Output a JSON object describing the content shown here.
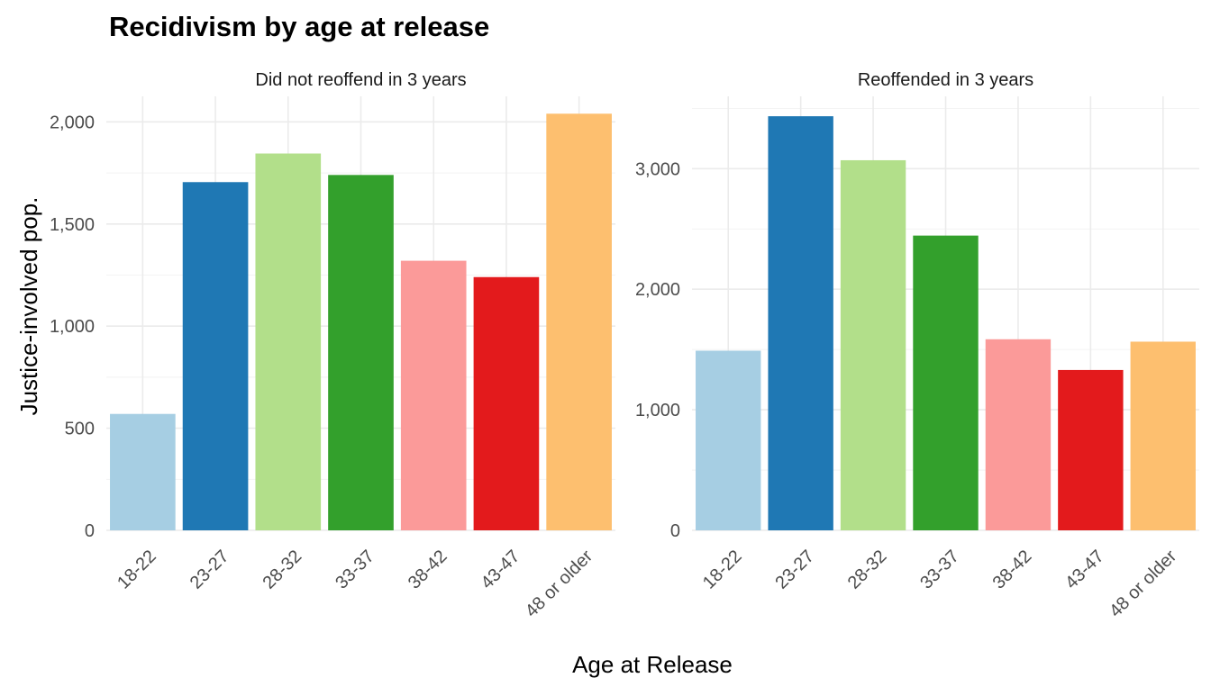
{
  "chart_data": {
    "type": "bar",
    "title": "Recidivism by age at release",
    "xlabel": "Age at Release",
    "ylabel": "Justice-involved pop.",
    "categories": [
      "18-22",
      "23-27",
      "28-32",
      "33-37",
      "38-42",
      "43-47",
      "48 or older"
    ],
    "colors": [
      "#A6CEE3",
      "#1F78B4",
      "#B2DF8A",
      "#33A02C",
      "#FB9A99",
      "#E31A1C",
      "#FDBF6F"
    ],
    "legend": "none",
    "grid": true,
    "panels": [
      {
        "strip": "Did not reoffend in 3 years",
        "values": [
          570,
          1705,
          1845,
          1740,
          1320,
          1240,
          2040
        ],
        "ylim": [
          0,
          2125
        ],
        "yticks": [
          0,
          500,
          1000,
          1500,
          2000
        ],
        "ytick_labels": [
          "0",
          "500",
          "1,000",
          "1,500",
          "2,000"
        ]
      },
      {
        "strip": "Reoffended in 3 years",
        "values": [
          1490,
          3435,
          3070,
          2445,
          1585,
          1330,
          1565
        ],
        "ylim": [
          0,
          3600
        ],
        "yticks": [
          0,
          1000,
          2000,
          3000
        ],
        "ytick_labels": [
          "0",
          "1,000",
          "2,000",
          "3,000"
        ]
      }
    ]
  }
}
